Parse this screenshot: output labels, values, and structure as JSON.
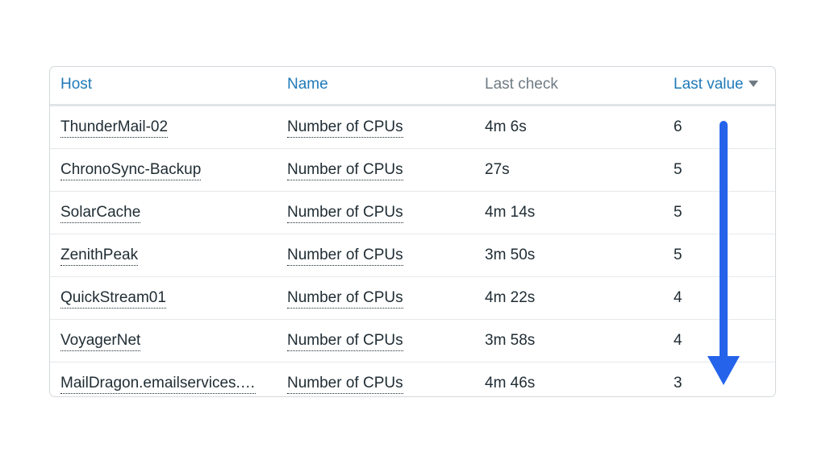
{
  "table": {
    "columns": {
      "host": "Host",
      "name": "Name",
      "last_check": "Last check",
      "last_value": "Last value"
    },
    "sort": {
      "column": "last_value",
      "direction": "descending"
    },
    "rows": [
      {
        "host": "ThunderMail-02",
        "name": "Number of CPUs",
        "last_check": "4m 6s",
        "last_value": "6"
      },
      {
        "host": "ChronoSync-Backup",
        "name": "Number of CPUs",
        "last_check": "27s",
        "last_value": "5"
      },
      {
        "host": "SolarCache",
        "name": "Number of CPUs",
        "last_check": "4m 14s",
        "last_value": "5"
      },
      {
        "host": "ZenithPeak",
        "name": "Number of CPUs",
        "last_check": "3m 50s",
        "last_value": "5"
      },
      {
        "host": "QuickStream01",
        "name": "Number of CPUs",
        "last_check": "4m 22s",
        "last_value": "4"
      },
      {
        "host": "VoyagerNet",
        "name": "Number of CPUs",
        "last_check": "3m 58s",
        "last_value": "4"
      },
      {
        "host": "MailDragon.emailservices.…",
        "name": "Number of CPUs",
        "last_check": "4m 46s",
        "last_value": "3"
      }
    ]
  },
  "annotation": {
    "icon": "arrow-down-icon",
    "color": "#2563eb"
  },
  "colors": {
    "link": "#1f7ab8",
    "muted_header": "#6f7b83",
    "text": "#1f2c33",
    "border": "#d4d8dc"
  }
}
